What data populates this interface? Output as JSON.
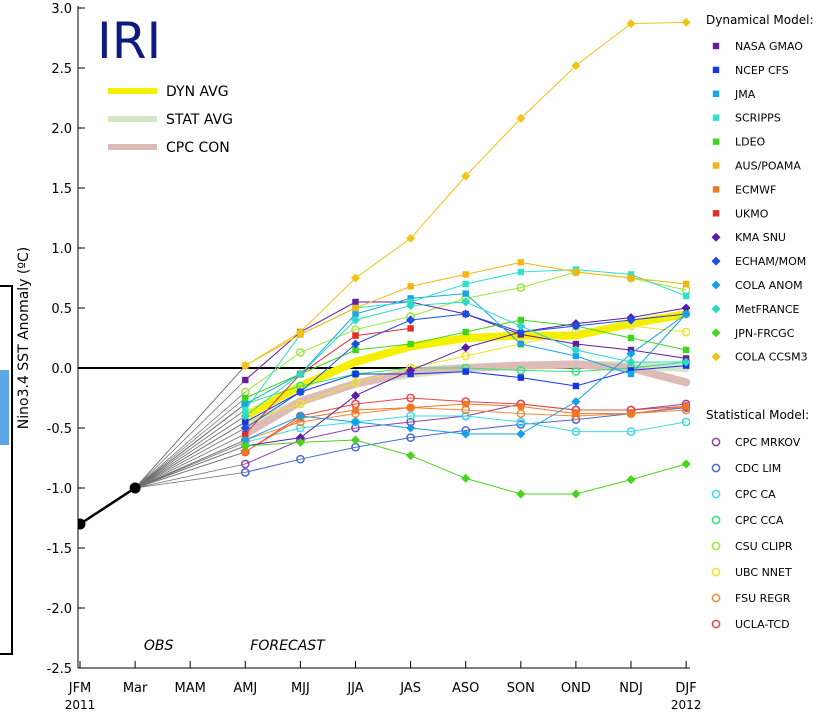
{
  "chart_data": {
    "type": "line",
    "logo": "IRI",
    "ylabel": "Nino3.4 SST Anomaly (ºC)",
    "ylim": [
      -2.5,
      3.0
    ],
    "yticks": [
      3.0,
      2.5,
      2.0,
      1.5,
      1.0,
      0.5,
      0.0,
      -0.5,
      -1.0,
      -1.5,
      -2.0,
      -2.5
    ],
    "ytick_labels": [
      "3.0",
      "2.5",
      "2.0",
      "1.5",
      "1.0",
      "0.5",
      "0.0",
      "-0.5",
      "-1.0",
      "-1.5",
      "-2.0",
      "-2.5"
    ],
    "categories": [
      "JFM",
      "Mar",
      "MAM",
      "AMJ",
      "MJJ",
      "JJA",
      "JAS",
      "ASO",
      "SON",
      "OND",
      "NDJ",
      "DJF"
    ],
    "year_labels": {
      "start": "2011",
      "end": "2012"
    },
    "annotations": {
      "obs": "OBS",
      "forecast": "FORECAST"
    },
    "observed": {
      "x": [
        "JFM",
        "Mar"
      ],
      "values": [
        -1.3,
        -1.0
      ]
    },
    "forecast_start": "AMJ",
    "averages": [
      {
        "name": "DYN AVG",
        "color": "#f5f000",
        "values": [
          -0.4,
          -0.15,
          0.05,
          0.18,
          0.25,
          0.27,
          0.27,
          0.37,
          0.45
        ]
      },
      {
        "name": "STAT AVG",
        "color": "#d4e6c8",
        "values": [
          -0.48,
          -0.28,
          -0.13,
          -0.05,
          0.0,
          0.02,
          0.03,
          0.02,
          0.0
        ]
      },
      {
        "name": "CPC CON",
        "color": "#ddbcb8",
        "values": [
          -0.55,
          -0.28,
          -0.13,
          -0.03,
          0.0,
          0.02,
          0.03,
          0.0,
          -0.12
        ]
      }
    ],
    "dynamical_heading": "Dynamical Model:",
    "dynamical": [
      {
        "name": "NASA GMAO",
        "color": "#6a1b9a",
        "marker": "square",
        "values": [
          -0.1,
          0.3,
          0.55,
          0.55,
          0.45,
          0.28,
          0.2,
          0.15,
          0.08
        ]
      },
      {
        "name": "NCEP CFS",
        "color": "#1535e6",
        "marker": "square",
        "values": [
          -0.45,
          -0.2,
          -0.05,
          -0.05,
          -0.03,
          -0.08,
          -0.15,
          -0.02,
          0.02
        ]
      },
      {
        "name": "JMA",
        "color": "#16a5e8",
        "marker": "square",
        "values": [
          -0.3,
          -0.05,
          0.45,
          0.58,
          0.62,
          0.2,
          0.1,
          -0.05,
          0.45
        ]
      },
      {
        "name": "SCRIPPS",
        "color": "#2ee3c8",
        "marker": "square",
        "values": [
          -0.35,
          0.28,
          0.5,
          0.55,
          0.7,
          0.8,
          0.82,
          0.78,
          0.6
        ]
      },
      {
        "name": "LDEO",
        "color": "#3ed61c",
        "marker": "square",
        "values": [
          -0.25,
          -0.05,
          0.15,
          0.2,
          0.3,
          0.4,
          0.35,
          0.25,
          0.15
        ]
      },
      {
        "name": "AUS/POAMA",
        "color": "#f3b712",
        "marker": "square",
        "values": [
          0.02,
          0.28,
          0.5,
          0.68,
          0.78,
          0.88,
          0.8,
          0.75,
          0.7
        ]
      },
      {
        "name": "ECMWF",
        "color": "#f07820",
        "marker": "square",
        "values": [
          -0.7,
          -0.42,
          -0.35,
          -0.33,
          -0.3,
          -0.32,
          -0.38,
          -0.38,
          -0.32
        ]
      },
      {
        "name": "UKMO",
        "color": "#e52a2a",
        "marker": "square",
        "values": [
          -0.55,
          -0.05,
          0.27,
          0.33,
          null,
          null,
          null,
          null,
          null
        ]
      },
      {
        "name": "KMA SNU",
        "color": "#5b1aa8",
        "marker": "diamond",
        "values": [
          -0.65,
          -0.58,
          -0.23,
          -0.02,
          0.17,
          0.3,
          0.37,
          0.42,
          0.5
        ]
      },
      {
        "name": "ECHAM/MOM",
        "color": "#1a4fe6",
        "marker": "diamond",
        "values": [
          -0.5,
          -0.2,
          0.2,
          0.4,
          0.45,
          0.3,
          0.35,
          0.4,
          0.45
        ]
      },
      {
        "name": "COLA ANOM",
        "color": "#16a0e8",
        "marker": "diamond",
        "values": [
          -0.6,
          -0.4,
          -0.45,
          -0.5,
          -0.55,
          -0.55,
          -0.28,
          0.12,
          0.45
        ]
      },
      {
        "name": "MetFRANCE",
        "color": "#2cd8cc",
        "marker": "diamond",
        "values": [
          -0.4,
          -0.05,
          0.4,
          0.52,
          0.55,
          0.35,
          0.15,
          0.05,
          0.05
        ]
      },
      {
        "name": "JPN-FRCGC",
        "color": "#48d41a",
        "marker": "diamond",
        "values": [
          -0.65,
          -0.62,
          -0.6,
          -0.73,
          -0.92,
          -1.05,
          -1.05,
          -0.93,
          -0.8
        ]
      },
      {
        "name": "COLA CCSM3",
        "color": "#f2c416",
        "marker": "diamond",
        "values": [
          0.02,
          0.3,
          0.75,
          1.08,
          1.6,
          2.08,
          2.52,
          2.87,
          2.88
        ]
      }
    ],
    "statistical_heading": "Statistical Model:",
    "statistical": [
      {
        "name": "CPC MRKOV",
        "color": "#8e44ad",
        "marker": "circle",
        "values": [
          -0.8,
          -0.6,
          -0.5,
          -0.45,
          -0.4,
          -0.3,
          -0.35,
          -0.35,
          -0.3
        ]
      },
      {
        "name": "CDC LIM",
        "color": "#4a69d6",
        "marker": "circle",
        "values": [
          -0.87,
          -0.76,
          -0.66,
          -0.58,
          -0.52,
          -0.47,
          -0.43,
          -0.38,
          -0.33
        ]
      },
      {
        "name": "CPC CA",
        "color": "#3ed9e8",
        "marker": "circle",
        "values": [
          -0.62,
          -0.5,
          -0.45,
          -0.4,
          -0.4,
          -0.45,
          -0.53,
          -0.53,
          -0.45
        ]
      },
      {
        "name": "CPC CCA",
        "color": "#2ee67a",
        "marker": "circle",
        "values": [
          -0.3,
          -0.15,
          -0.05,
          0.0,
          0.0,
          -0.02,
          -0.03,
          0.0,
          0.05
        ]
      },
      {
        "name": "CSU CLIPR",
        "color": "#9be838",
        "marker": "circle",
        "values": [
          -0.2,
          0.13,
          0.32,
          0.43,
          0.58,
          0.67,
          0.8,
          0.75,
          0.65
        ]
      },
      {
        "name": "UBC NNET",
        "color": "#f2e22a",
        "marker": "circle",
        "values": [
          -0.45,
          -0.3,
          -0.12,
          0.0,
          0.1,
          0.2,
          0.3,
          0.35,
          0.3
        ]
      },
      {
        "name": "FSU REGR",
        "color": "#f08a3c",
        "marker": "circle",
        "values": [
          -0.6,
          -0.45,
          -0.38,
          -0.33,
          -0.35,
          -0.38,
          -0.4,
          -0.38,
          -0.35
        ]
      },
      {
        "name": "UCLA-TCD",
        "color": "#e8484a",
        "marker": "circle",
        "values": [
          -0.7,
          -0.4,
          -0.3,
          -0.25,
          -0.28,
          -0.3,
          -0.35,
          -0.35,
          -0.32
        ]
      }
    ]
  }
}
